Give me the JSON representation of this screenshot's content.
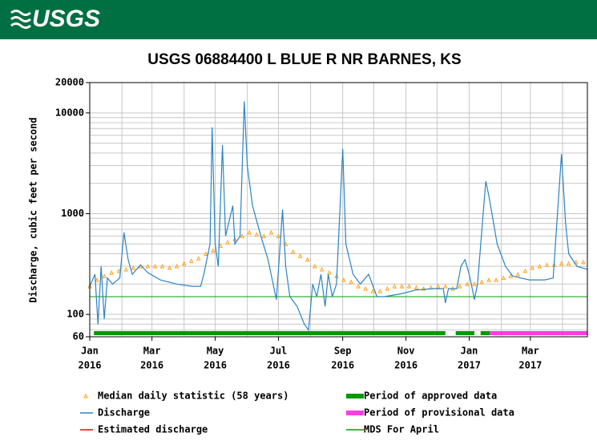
{
  "header": {
    "logo": "USGS"
  },
  "chart_data": {
    "type": "line",
    "title": "USGS 06884400 L BLUE R NR BARNES, KS",
    "y_label": "Discharge, cubic feet per second",
    "log_y": true,
    "grid": true,
    "xlim": [
      0,
      480
    ],
    "xticks": [
      {
        "value": 0,
        "label": [
          "Jan",
          "2016"
        ]
      },
      {
        "value": 60,
        "label": [
          "Mar",
          "2016"
        ]
      },
      {
        "value": 121,
        "label": [
          "May",
          "2016"
        ]
      },
      {
        "value": 182,
        "label": [
          "Jul",
          "2016"
        ]
      },
      {
        "value": 244,
        "label": [
          "Sep",
          "2016"
        ]
      },
      {
        "value": 305,
        "label": [
          "Nov",
          "2016"
        ]
      },
      {
        "value": 366,
        "label": [
          "Jan",
          "2017"
        ]
      },
      {
        "value": 425,
        "label": [
          "Mar",
          "2017"
        ]
      }
    ],
    "minor_xticks": [
      31,
      91,
      152,
      213,
      274,
      335,
      397,
      456
    ],
    "ylim": [
      60,
      20000
    ],
    "yticks": [
      60,
      100,
      1000,
      10000,
      20000
    ],
    "minor_yticks": [
      70,
      80,
      90,
      200,
      300,
      400,
      500,
      600,
      700,
      800,
      900,
      2000,
      3000,
      4000,
      5000,
      6000,
      7000,
      8000,
      9000
    ],
    "series": [
      {
        "name": "Median daily statistic (58 years)",
        "color": "#ffa31a",
        "marker": "triangle",
        "x": [
          0,
          7,
          14,
          21,
          28,
          35,
          42,
          49,
          56,
          63,
          70,
          77,
          84,
          91,
          98,
          105,
          112,
          119,
          126,
          133,
          140,
          147,
          154,
          161,
          168,
          175,
          182,
          189,
          196,
          203,
          210,
          217,
          224,
          231,
          238,
          245,
          252,
          259,
          266,
          273,
          280,
          287,
          294,
          301,
          308,
          315,
          322,
          329,
          336,
          343,
          350,
          357,
          364,
          371,
          378,
          385,
          392,
          399,
          406,
          413,
          420,
          427,
          434,
          441,
          448,
          455,
          462,
          469,
          476
        ],
        "values": [
          190,
          220,
          240,
          260,
          270,
          280,
          290,
          300,
          300,
          300,
          300,
          290,
          300,
          320,
          340,
          360,
          400,
          430,
          480,
          520,
          560,
          600,
          650,
          620,
          600,
          650,
          600,
          500,
          420,
          380,
          350,
          300,
          280,
          260,
          240,
          220,
          210,
          190,
          180,
          170,
          170,
          180,
          190,
          190,
          190,
          185,
          180,
          185,
          190,
          190,
          180,
          190,
          200,
          200,
          210,
          220,
          220,
          230,
          240,
          250,
          270,
          290,
          300,
          310,
          310,
          320,
          320,
          330,
          330
        ]
      },
      {
        "name": "Discharge",
        "color": "#2b83c6",
        "marker": "line",
        "x": [
          0,
          5,
          8,
          11,
          14,
          17,
          22,
          29,
          33,
          37,
          41,
          49,
          56,
          68,
          84,
          99,
          107,
          110,
          116,
          118,
          121,
          124,
          128,
          131,
          138,
          140,
          145,
          149,
          152,
          157,
          165,
          172,
          180,
          186,
          189,
          193,
          200,
          207,
          211,
          215,
          219,
          223,
          227,
          230,
          234,
          238,
          244,
          247,
          254,
          261,
          269,
          277,
          284,
          300,
          315,
          331,
          341,
          343,
          346,
          354,
          358,
          362,
          366,
          370,
          371,
          374,
          382,
          385,
          393,
          401,
          408,
          424,
          439,
          447,
          455,
          459,
          462,
          470,
          480
        ],
        "values": [
          190,
          250,
          80,
          300,
          90,
          230,
          200,
          230,
          650,
          350,
          250,
          310,
          260,
          220,
          200,
          190,
          190,
          250,
          500,
          7200,
          500,
          300,
          4800,
          600,
          1200,
          500,
          600,
          13000,
          3000,
          1200,
          600,
          350,
          140,
          1100,
          300,
          150,
          120,
          80,
          70,
          200,
          150,
          250,
          120,
          250,
          150,
          200,
          4400,
          500,
          250,
          200,
          250,
          150,
          150,
          160,
          175,
          180,
          180,
          130,
          180,
          180,
          300,
          350,
          250,
          160,
          140,
          200,
          2100,
          1500,
          500,
          300,
          240,
          220,
          220,
          230,
          3900,
          800,
          400,
          300,
          280
        ]
      }
    ],
    "legend_only": [
      {
        "name": "Estimated discharge",
        "color": "#ff0000"
      }
    ],
    "reference_line": {
      "name": "MDS For April",
      "value": 150,
      "color": "#00a000"
    },
    "periods": [
      {
        "name": "Period of approved data",
        "color": "#009a00",
        "ranges": [
          [
            4,
            343
          ],
          [
            353,
            371
          ],
          [
            377,
            386
          ]
        ]
      },
      {
        "name": "Period of provisional data",
        "color": "#ff3ce0",
        "ranges": [
          [
            386,
            480
          ]
        ]
      }
    ]
  }
}
